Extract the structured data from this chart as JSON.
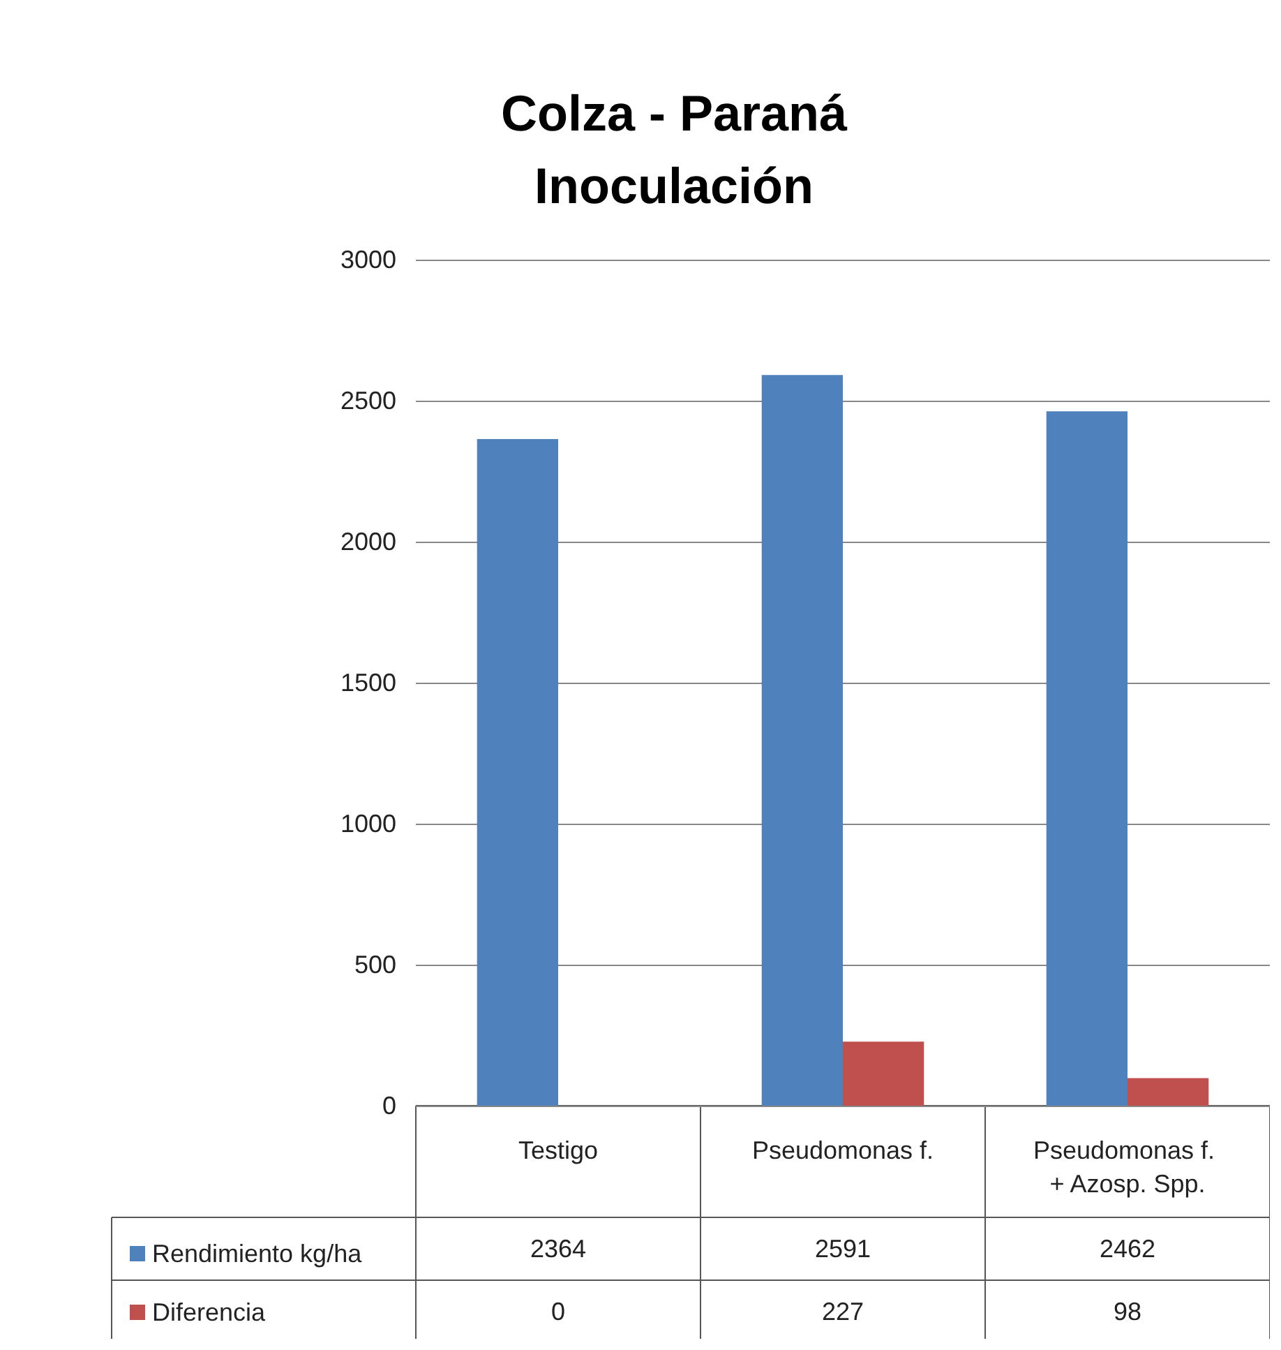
{
  "chart_data": {
    "type": "bar",
    "title": "Colza - Paraná\nInoculación",
    "categories": [
      "Testigo",
      "Pseudomonas f.",
      "Pseudomonas f. + Azosp. Spp."
    ],
    "series": [
      {
        "name": "Rendimiento kg/ha",
        "color": "#4f81bd",
        "values": [
          2364,
          2591,
          2462
        ]
      },
      {
        "name": "Diferencia",
        "color": "#c0504d",
        "values": [
          0,
          227,
          98
        ]
      }
    ],
    "ylim": [
      0,
      3000
    ],
    "yticks": [
      0,
      500,
      1000,
      1500,
      2000,
      2500,
      3000
    ],
    "grid": "y",
    "legend": "bottom left",
    "data_labels": true
  }
}
